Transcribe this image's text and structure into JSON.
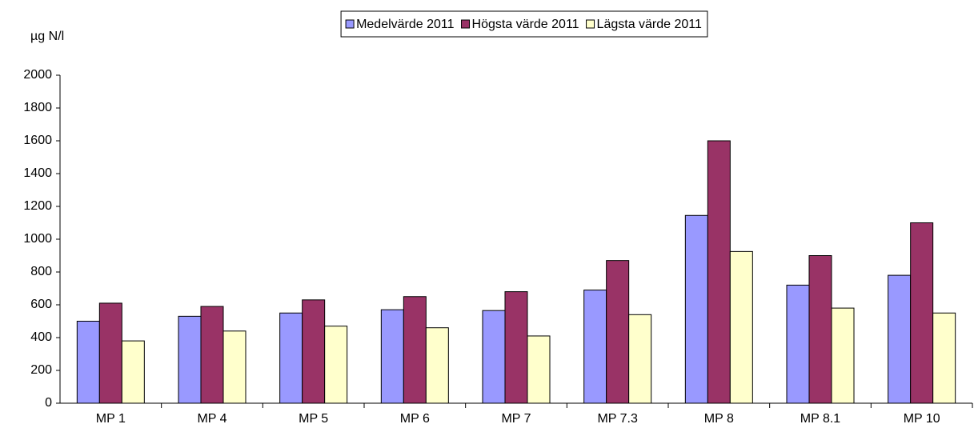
{
  "chart_data": {
    "type": "bar",
    "y_label": "µg N/l",
    "categories": [
      "MP 1",
      "MP 4",
      "MP 5",
      "MP 6",
      "MP 7",
      "MP 7.3",
      "MP 8",
      "MP 8.1",
      "MP 10"
    ],
    "series": [
      {
        "name": "Medelvärde 2011",
        "color": "#9999ff",
        "values": [
          500,
          530,
          550,
          570,
          565,
          690,
          1145,
          720,
          780
        ]
      },
      {
        "name": "Högsta värde 2011",
        "color": "#993366",
        "values": [
          610,
          590,
          630,
          650,
          680,
          870,
          1600,
          900,
          1100
        ]
      },
      {
        "name": "Lägsta värde 2011",
        "color": "#ffffcc",
        "values": [
          380,
          440,
          470,
          460,
          410,
          540,
          925,
          580,
          550
        ]
      }
    ],
    "ylim": [
      0,
      2000
    ],
    "yticks": [
      0,
      200,
      400,
      600,
      800,
      1000,
      1200,
      1400,
      1600,
      1800,
      2000
    ],
    "grid": false,
    "legend": "top"
  }
}
